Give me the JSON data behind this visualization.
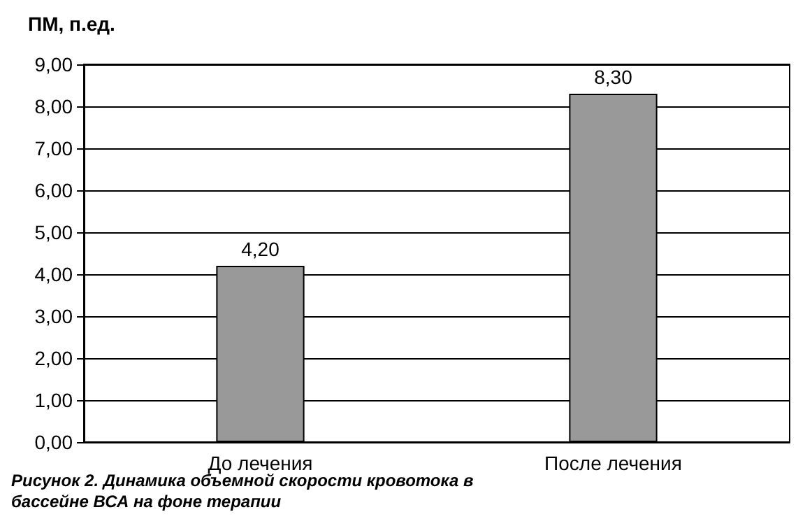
{
  "chart_data": {
    "type": "bar",
    "ylabel": "ПМ, п.ед.",
    "categories": [
      "До лечения",
      "После лечения"
    ],
    "values": [
      4.2,
      8.3
    ],
    "value_labels": [
      "4,20",
      "8,30"
    ],
    "color": "#999999",
    "ylim": [
      0,
      9
    ],
    "yticks": [
      {
        "value": 0,
        "label": "0,00"
      },
      {
        "value": 1,
        "label": "1,00"
      },
      {
        "value": 2,
        "label": "2,00"
      },
      {
        "value": 3,
        "label": "3,00"
      },
      {
        "value": 4,
        "label": "4,00"
      },
      {
        "value": 5,
        "label": "5,00"
      },
      {
        "value": 6,
        "label": "6,00"
      },
      {
        "value": 7,
        "label": "7,00"
      },
      {
        "value": 8,
        "label": "8,00"
      },
      {
        "value": 9,
        "label": "9,00"
      }
    ],
    "grid": "y",
    "annotations": [
      "Рисунок 2. Динамика объемной скорости кровотока в бассейне ВСА на фоне терапии"
    ]
  }
}
